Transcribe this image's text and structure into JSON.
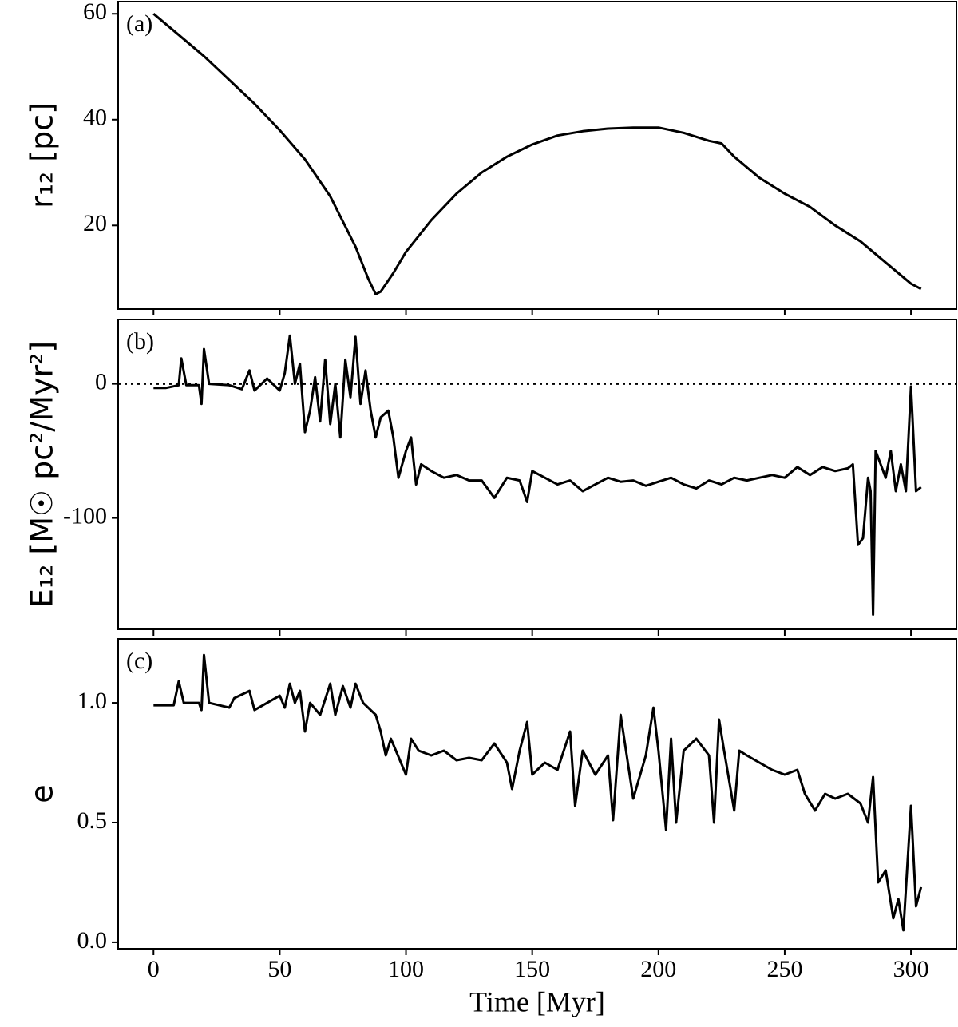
{
  "chart_data": [
    {
      "type": "line",
      "panel_label": "(a)",
      "ylabel": "r₁₂ [pc]",
      "color": "#000000",
      "x": [
        0,
        10,
        20,
        30,
        40,
        50,
        60,
        70,
        80,
        85,
        88,
        90,
        95,
        100,
        110,
        120,
        130,
        140,
        150,
        160,
        170,
        180,
        190,
        200,
        210,
        220,
        225,
        230,
        240,
        250,
        260,
        270,
        280,
        290,
        300,
        304
      ],
      "values": [
        60,
        56,
        52,
        47.5,
        43,
        38,
        32.5,
        25.5,
        16,
        10,
        7,
        7.5,
        11,
        15,
        21,
        26,
        30,
        33,
        35.3,
        37,
        37.8,
        38.3,
        38.5,
        38.5,
        37.5,
        36,
        35.5,
        33,
        29,
        26,
        23.5,
        20,
        17,
        13,
        9,
        8
      ],
      "xlim": [
        -14,
        318
      ],
      "xticks": [
        0,
        50,
        100,
        150,
        200,
        250,
        300
      ],
      "ylim": [
        4.2,
        62.3
      ],
      "yticks": [
        20,
        40,
        60
      ]
    },
    {
      "type": "line",
      "panel_label": "(b)",
      "ylabel": "E₁₂ [M☉ pc²/Myr²]",
      "color": "#000000",
      "reference_line": 0,
      "x": [
        0,
        5,
        10,
        11,
        13,
        18,
        19,
        20,
        22,
        30,
        35,
        38,
        40,
        45,
        50,
        52,
        54,
        56,
        58,
        60,
        62,
        64,
        66,
        68,
        70,
        72,
        74,
        76,
        78,
        80,
        82,
        84,
        86,
        88,
        90,
        93,
        95,
        97,
        100,
        102,
        104,
        106,
        110,
        115,
        120,
        125,
        130,
        135,
        140,
        145,
        148,
        150,
        155,
        160,
        165,
        170,
        175,
        180,
        185,
        190,
        195,
        200,
        205,
        210,
        215,
        220,
        225,
        230,
        235,
        240,
        245,
        250,
        255,
        260,
        265,
        270,
        275,
        277,
        279,
        281,
        283,
        284,
        285,
        286,
        288,
        290,
        292,
        294,
        296,
        298,
        300,
        302,
        304
      ],
      "values": [
        -3,
        -3,
        -1,
        19,
        -1,
        -1,
        -15,
        26,
        0,
        -1,
        -4,
        10,
        -5,
        4,
        -5,
        8,
        36,
        0,
        15,
        -36,
        -20,
        5,
        -28,
        18,
        -30,
        0,
        -40,
        18,
        -10,
        35,
        -15,
        10,
        -20,
        -40,
        -25,
        -20,
        -40,
        -70,
        -50,
        -40,
        -75,
        -60,
        -65,
        -70,
        -68,
        -72,
        -72,
        -85,
        -70,
        -72,
        -88,
        -65,
        -70,
        -75,
        -72,
        -80,
        -75,
        -70,
        -73,
        -72,
        -76,
        -73,
        -70,
        -75,
        -78,
        -72,
        -75,
        -70,
        -72,
        -70,
        -68,
        -70,
        -62,
        -68,
        -62,
        -65,
        -63,
        -60,
        -120,
        -115,
        -70,
        -80,
        -172,
        -50,
        -60,
        -70,
        -50,
        -80,
        -60,
        -80,
        -2,
        -80,
        -77
      ],
      "xlim": [
        -14,
        318
      ],
      "xticks": [
        0,
        50,
        100,
        150,
        200,
        250,
        300
      ],
      "ylim": [
        -183,
        48
      ],
      "yticks": [
        -100,
        0
      ]
    },
    {
      "type": "line",
      "panel_label": "(c)",
      "ylabel": "e",
      "xlabel": "Time [Myr]",
      "color": "#000000",
      "x": [
        0,
        8,
        10,
        12,
        18,
        19,
        20,
        22,
        30,
        32,
        38,
        40,
        50,
        52,
        54,
        56,
        58,
        60,
        62,
        66,
        70,
        72,
        75,
        78,
        80,
        83,
        85,
        88,
        90,
        92,
        94,
        96,
        100,
        102,
        105,
        110,
        115,
        120,
        125,
        130,
        135,
        140,
        142,
        145,
        148,
        150,
        155,
        160,
        165,
        167,
        170,
        175,
        180,
        182,
        185,
        190,
        195,
        198,
        200,
        203,
        205,
        207,
        210,
        215,
        220,
        222,
        224,
        226,
        230,
        232,
        235,
        240,
        245,
        250,
        255,
        258,
        262,
        266,
        270,
        275,
        280,
        283,
        285,
        287,
        290,
        293,
        295,
        297,
        300,
        302,
        304
      ],
      "values": [
        0.99,
        0.99,
        1.09,
        1.0,
        1.0,
        0.97,
        1.2,
        1.0,
        0.98,
        1.02,
        1.05,
        0.97,
        1.03,
        0.98,
        1.08,
        1.0,
        1.05,
        0.88,
        1.0,
        0.95,
        1.08,
        0.95,
        1.07,
        0.98,
        1.08,
        1.0,
        0.98,
        0.95,
        0.88,
        0.78,
        0.85,
        0.8,
        0.7,
        0.85,
        0.8,
        0.78,
        0.8,
        0.76,
        0.77,
        0.76,
        0.83,
        0.75,
        0.64,
        0.8,
        0.92,
        0.7,
        0.75,
        0.72,
        0.88,
        0.57,
        0.8,
        0.7,
        0.78,
        0.51,
        0.95,
        0.6,
        0.78,
        0.98,
        0.8,
        0.47,
        0.85,
        0.5,
        0.8,
        0.85,
        0.78,
        0.5,
        0.93,
        0.8,
        0.55,
        0.8,
        0.78,
        0.75,
        0.72,
        0.7,
        0.72,
        0.62,
        0.55,
        0.62,
        0.6,
        0.62,
        0.58,
        0.5,
        0.69,
        0.25,
        0.3,
        0.1,
        0.18,
        0.05,
        0.57,
        0.15,
        0.23
      ],
      "xlim": [
        -14,
        318
      ],
      "xticks": [
        0,
        50,
        100,
        150,
        200,
        250,
        300
      ],
      "ylim": [
        -0.027,
        1.267
      ],
      "yticks": [
        {
          "value": 0,
          "label": "0.0"
        },
        0.5,
        {
          "value": 1,
          "label": "1.0"
        }
      ]
    }
  ]
}
